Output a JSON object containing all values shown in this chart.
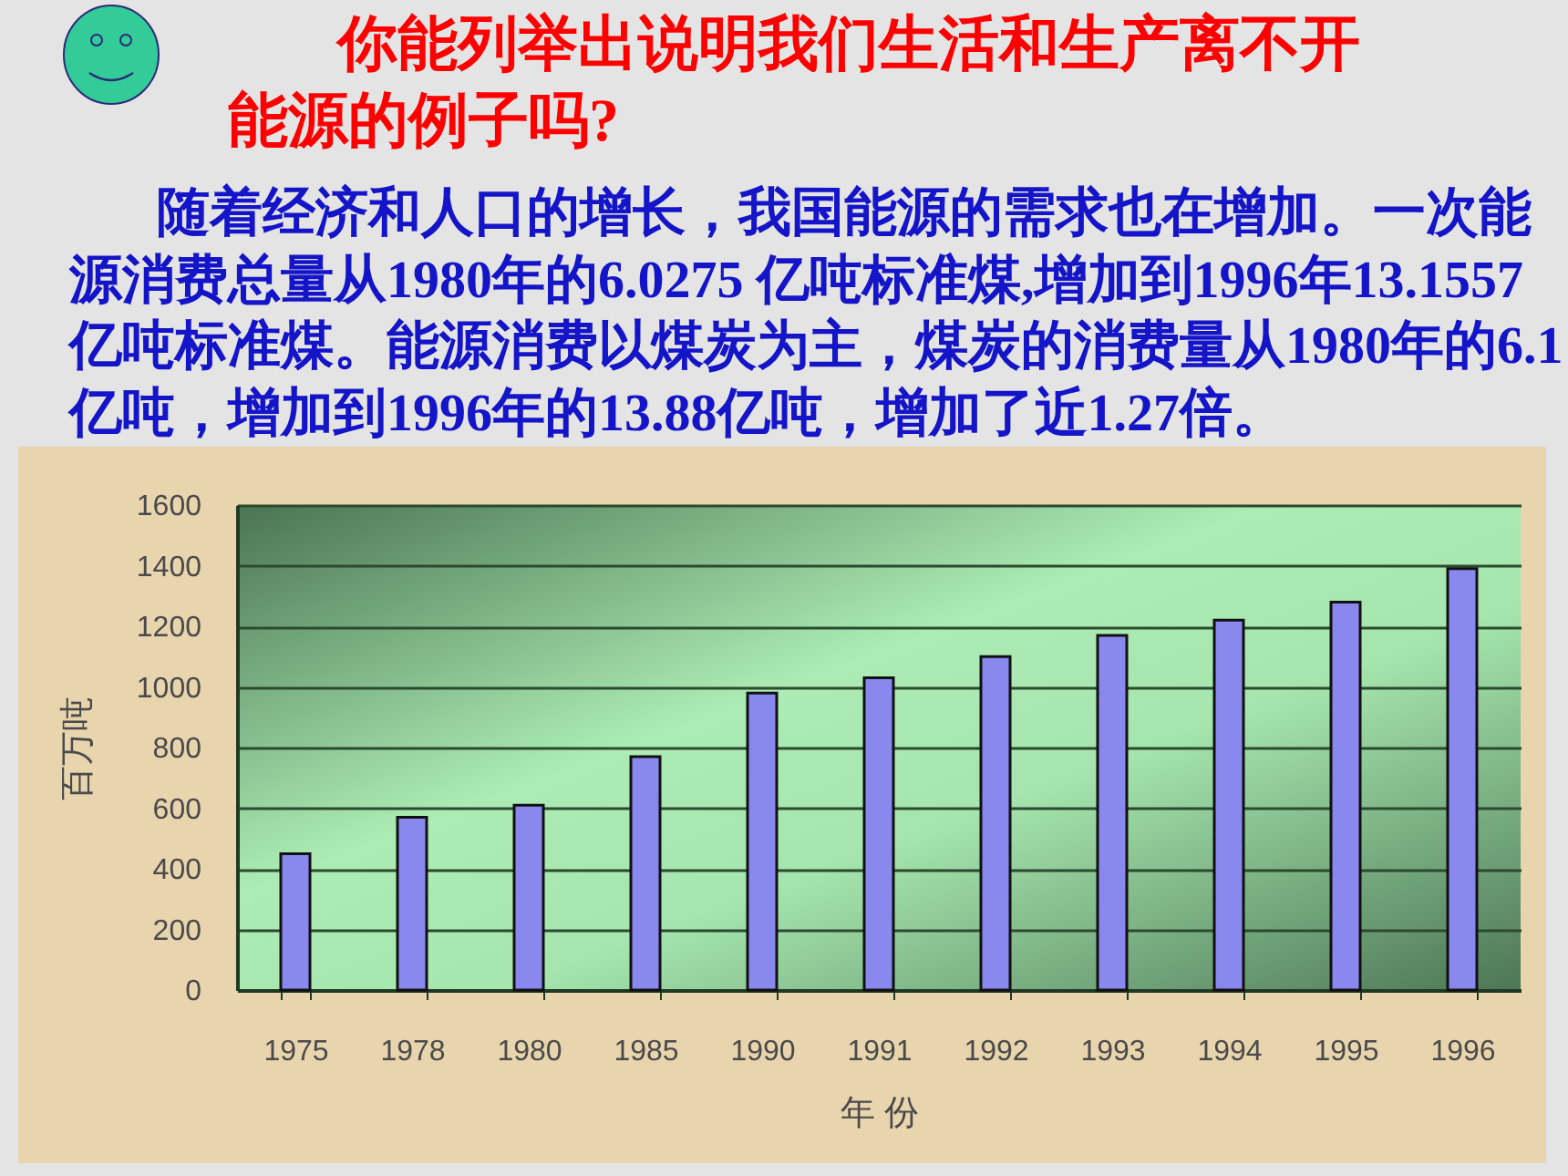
{
  "chart_data": {
    "type": "bar",
    "title": "你能列举出说明我们生活和生产离不开能源的例子吗?",
    "subtitle": "随着经济和人口的增长，我国能源的需求也在增加。一次能源消费总量从1980年的6.0275 亿吨标准煤,增加到1996年13.1557亿吨标准煤。能源消费以煤炭为主，煤炭的消费量从1980年的6.1亿吨，增加到1996年的13.88亿吨，增加了近1.27倍。",
    "xlabel": "年 份",
    "ylabel": "百万吨",
    "categories": [
      "1975",
      "1978",
      "1980",
      "1985",
      "1990",
      "1991",
      "1992",
      "1993",
      "1994",
      "1995",
      "1996"
    ],
    "values": [
      450,
      570,
      610,
      770,
      980,
      1030,
      1100,
      1170,
      1220,
      1280,
      1390
    ],
    "color": "#8888ee",
    "ylim": [
      0,
      1600
    ],
    "yticks": [
      0,
      200,
      400,
      600,
      800,
      1000,
      1200,
      1400,
      1600
    ],
    "grid": "y"
  }
}
